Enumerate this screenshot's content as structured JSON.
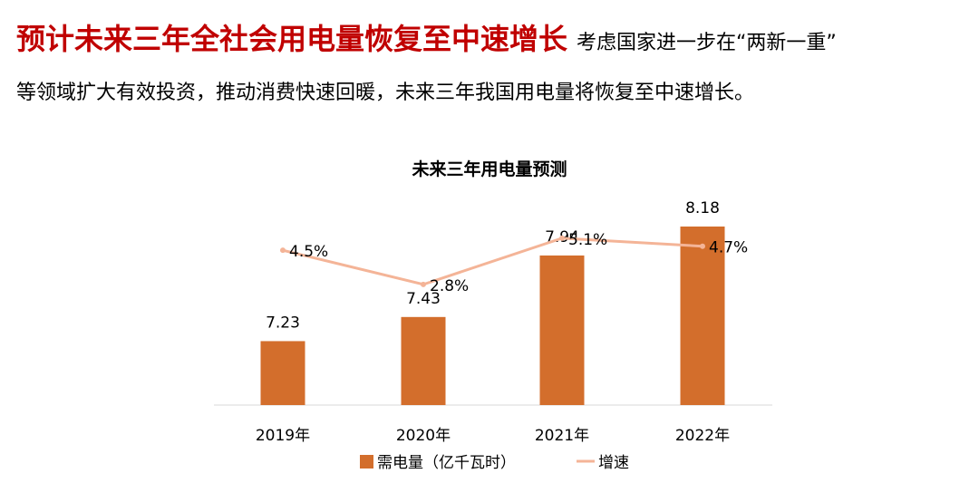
{
  "headline": {
    "title": "预计未来三年全社会用电量恢复至中速增长",
    "lead": "考虑国家进一步在“两新一重”"
  },
  "body_text": "等领域扩大有效投资，推动消费快速回暖，未来三年我国用电量将恢复至中速增长。",
  "colors": {
    "bar": "#d36e2c",
    "line": "#f4b497",
    "title": "#c00000"
  },
  "chart_data": {
    "type": "bar",
    "title": "未来三年用电量预测",
    "categories": [
      "2019年",
      "2020年",
      "2021年",
      "2022年"
    ],
    "series": [
      {
        "name": "需电量（亿千瓦时）",
        "type": "bar",
        "values": [
          7.23,
          7.43,
          7.94,
          8.18
        ],
        "labels": [
          "7.23",
          "7.43",
          "7.94",
          "8.18"
        ]
      },
      {
        "name": "增速",
        "type": "line",
        "values": [
          4.5,
          2.8,
          5.1,
          4.7
        ],
        "labels": [
          "4.5%",
          "2.8%",
          "5.1%",
          "4.7%"
        ]
      }
    ],
    "legend": "bottom",
    "grid": false
  }
}
